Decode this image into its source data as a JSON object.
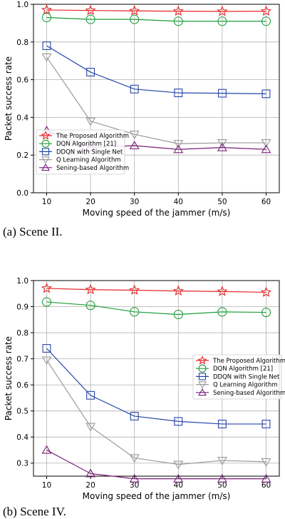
{
  "chart_data": [
    {
      "type": "line",
      "caption": "(a)  Scene II.",
      "xlabel": "Moving speed of the jammer (m/s)",
      "ylabel": "Packet success rate",
      "x": [
        10,
        20,
        30,
        40,
        50,
        60
      ],
      "xlim": [
        7,
        63
      ],
      "ylim": [
        0.0,
        1.0
      ],
      "yticks": [
        "0.0",
        "0.2",
        "0.4",
        "0.6",
        "0.8",
        "1.0"
      ],
      "xticks": [
        "10",
        "20",
        "30",
        "40",
        "50",
        "60"
      ],
      "grid": true,
      "legend_position": "lower-left",
      "series": [
        {
          "name": "The Proposed Algorithm",
          "color": "#e8262a",
          "marker": "star",
          "values": [
            0.97,
            0.967,
            0.965,
            0.963,
            0.962,
            0.963
          ]
        },
        {
          "name": "DQN Algorithm [21]",
          "color": "#1f9d3a",
          "marker": "circle",
          "values": [
            0.93,
            0.92,
            0.92,
            0.91,
            0.91,
            0.91
          ]
        },
        {
          "name": "DDQN with Single Net",
          "color": "#2746a8",
          "marker": "square",
          "values": [
            0.78,
            0.64,
            0.55,
            0.53,
            0.528,
            0.525
          ]
        },
        {
          "name": "Q Learning Algorithm",
          "color": "#9a9a9a",
          "marker": "triangle-down",
          "values": [
            0.72,
            0.38,
            0.31,
            0.26,
            0.265,
            0.265
          ]
        },
        {
          "name": "Sening-based Algorithm",
          "color": "#7a1f7a",
          "marker": "triangle-up",
          "values": [
            0.33,
            0.24,
            0.25,
            0.23,
            0.24,
            0.23
          ]
        }
      ]
    },
    {
      "type": "line",
      "caption": "(b)  Scene IV.",
      "xlabel": "Moving speed of the jammer (m/s)",
      "ylabel": "Packet success rate",
      "x": [
        10,
        20,
        30,
        40,
        50,
        60
      ],
      "xlim": [
        7,
        63
      ],
      "ylim": [
        0.25,
        1.0
      ],
      "yticks": [
        "0.3",
        "0.4",
        "0.5",
        "0.6",
        "0.7",
        "0.8",
        "0.9",
        "1.0"
      ],
      "xticks": [
        "10",
        "20",
        "30",
        "40",
        "50",
        "60"
      ],
      "grid": true,
      "legend_position": "center-right",
      "series": [
        {
          "name": "The Proposed Algorithm",
          "color": "#e8262a",
          "marker": "star",
          "values": [
            0.97,
            0.965,
            0.963,
            0.96,
            0.958,
            0.955
          ]
        },
        {
          "name": "DQN Algorithm [21]",
          "color": "#1f9d3a",
          "marker": "circle",
          "values": [
            0.918,
            0.905,
            0.88,
            0.87,
            0.88,
            0.878
          ]
        },
        {
          "name": "DDQN with Single Net",
          "color": "#2746a8",
          "marker": "square",
          "values": [
            0.74,
            0.56,
            0.48,
            0.46,
            0.45,
            0.45
          ]
        },
        {
          "name": "Q Learning Algorithm",
          "color": "#9a9a9a",
          "marker": "triangle-down",
          "values": [
            0.695,
            0.44,
            0.32,
            0.295,
            0.31,
            0.305
          ]
        },
        {
          "name": "Sening-based Algorithm",
          "color": "#7a1f7a",
          "marker": "triangle-up",
          "values": [
            0.35,
            0.26,
            0.24,
            0.24,
            0.24,
            0.24
          ]
        }
      ]
    }
  ]
}
